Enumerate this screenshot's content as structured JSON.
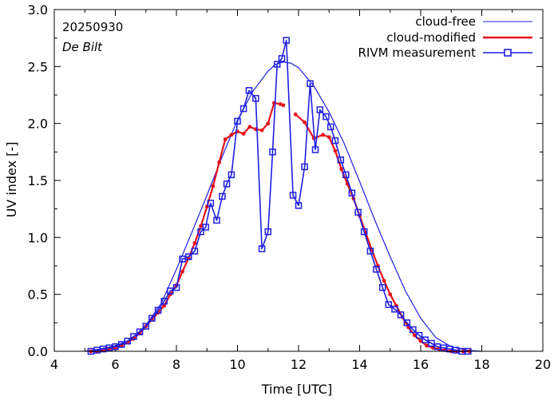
{
  "chart_data": {
    "type": "line",
    "xlabel": "Time  [UTC]",
    "ylabel": "UV index  [-]",
    "xlim": [
      4,
      20
    ],
    "ylim": [
      0,
      3
    ],
    "xticks": [
      4,
      6,
      8,
      10,
      12,
      14,
      16,
      18,
      20
    ],
    "yticks": [
      0.0,
      0.5,
      1.0,
      1.5,
      2.0,
      2.5,
      3.0
    ],
    "xtick_labels": [
      "4",
      "6",
      "8",
      "10",
      "12",
      "14",
      "16",
      "18",
      "20"
    ],
    "ytick_labels": [
      "0.0",
      "0.5",
      "1.0",
      "1.5",
      "2.0",
      "2.5",
      "3.0"
    ],
    "date_label": "20250930",
    "station_label": "De Bilt",
    "legend_position": "top-right",
    "colors": {
      "cloud_free": "#1f1fe0",
      "cloud_modified": "#e8101a",
      "measurement": "#1f1fe0"
    },
    "series": [
      {
        "name": "cloud-free",
        "style": "line",
        "x": [
          5.0,
          5.5,
          6.0,
          6.5,
          7.0,
          7.5,
          8.0,
          8.5,
          9.0,
          9.5,
          10.0,
          10.5,
          11.0,
          11.25,
          11.5,
          11.75,
          12.0,
          12.5,
          13.0,
          13.5,
          14.0,
          14.5,
          15.0,
          15.5,
          16.0,
          16.5,
          17.0,
          17.5,
          18.0
        ],
        "y": [
          0.0,
          0.02,
          0.05,
          0.1,
          0.23,
          0.42,
          0.72,
          1.04,
          1.37,
          1.71,
          2.03,
          2.28,
          2.46,
          2.52,
          2.54,
          2.53,
          2.49,
          2.33,
          2.1,
          1.82,
          1.49,
          1.15,
          0.83,
          0.53,
          0.29,
          0.12,
          0.04,
          0.01,
          0.0
        ]
      },
      {
        "name": "cloud-modified",
        "style": "line+dots",
        "segments": [
          {
            "x": [
              5.2,
              5.4,
              5.6,
              5.8,
              6.0,
              6.2,
              6.4,
              6.6,
              6.8,
              7.0,
              7.2,
              7.4,
              7.6,
              7.8,
              8.0,
              8.2,
              8.4,
              8.6,
              8.8,
              9.0,
              9.2,
              9.4,
              9.6,
              9.8,
              10.0,
              10.2,
              10.4,
              10.6,
              10.8,
              11.0,
              11.2,
              11.4,
              11.5
            ],
            "y": [
              0.0,
              0.0,
              0.01,
              0.02,
              0.03,
              0.05,
              0.08,
              0.11,
              0.16,
              0.22,
              0.28,
              0.34,
              0.4,
              0.5,
              0.58,
              0.7,
              0.82,
              0.95,
              1.1,
              1.27,
              1.45,
              1.66,
              1.86,
              1.9,
              1.93,
              1.91,
              1.97,
              1.95,
              1.94,
              2.0,
              2.18,
              2.17,
              2.16
            ]
          },
          {
            "x": [
              11.9,
              12.2,
              12.5,
              12.8,
              13.0,
              13.2,
              13.4,
              13.6,
              13.8,
              14.0,
              14.2,
              14.4,
              14.6,
              14.8,
              15.0,
              15.2,
              15.4,
              15.6,
              15.8,
              16.0,
              16.2,
              16.4,
              16.6,
              16.8,
              17.0,
              17.2,
              17.4,
              17.6
            ],
            "y": [
              2.08,
              2.01,
              1.87,
              1.9,
              1.88,
              1.76,
              1.6,
              1.47,
              1.34,
              1.19,
              1.04,
              0.89,
              0.75,
              0.62,
              0.5,
              0.4,
              0.3,
              0.21,
              0.14,
              0.09,
              0.05,
              0.03,
              0.02,
              0.01,
              0.0,
              0.0,
              0.0,
              0.0
            ]
          }
        ]
      },
      {
        "name": "RIVM measurement",
        "style": "line+squares",
        "x": [
          5.2,
          5.4,
          5.6,
          5.8,
          6.0,
          6.2,
          6.4,
          6.6,
          6.8,
          7.0,
          7.2,
          7.4,
          7.6,
          7.8,
          8.0,
          8.2,
          8.4,
          8.6,
          8.8,
          8.96,
          9.12,
          9.32,
          9.5,
          9.65,
          9.8,
          10.0,
          10.2,
          10.38,
          10.6,
          10.8,
          11.0,
          11.15,
          11.3,
          11.45,
          11.6,
          11.82,
          12.0,
          12.2,
          12.38,
          12.55,
          12.7,
          12.9,
          13.05,
          13.2,
          13.38,
          13.55,
          13.75,
          13.95,
          14.15,
          14.35,
          14.55,
          14.75,
          14.95,
          15.15,
          15.35,
          15.55,
          15.75,
          15.95,
          16.15,
          16.35,
          16.55,
          16.75,
          16.95,
          17.15,
          17.35,
          17.55
        ],
        "y": [
          0.0,
          0.01,
          0.02,
          0.03,
          0.04,
          0.06,
          0.09,
          0.13,
          0.17,
          0.22,
          0.29,
          0.36,
          0.44,
          0.53,
          0.56,
          0.81,
          0.83,
          0.88,
          1.05,
          1.09,
          1.3,
          1.15,
          1.36,
          1.47,
          1.55,
          2.02,
          2.13,
          2.29,
          2.22,
          0.9,
          1.05,
          1.75,
          2.52,
          2.57,
          2.73,
          1.37,
          1.28,
          1.62,
          2.35,
          1.77,
          2.12,
          2.06,
          1.97,
          1.85,
          1.68,
          1.55,
          1.39,
          1.22,
          1.05,
          0.88,
          0.72,
          0.56,
          0.41,
          0.37,
          0.32,
          0.25,
          0.19,
          0.14,
          0.1,
          0.07,
          0.04,
          0.03,
          0.02,
          0.01,
          0.0,
          0.0
        ]
      }
    ]
  }
}
